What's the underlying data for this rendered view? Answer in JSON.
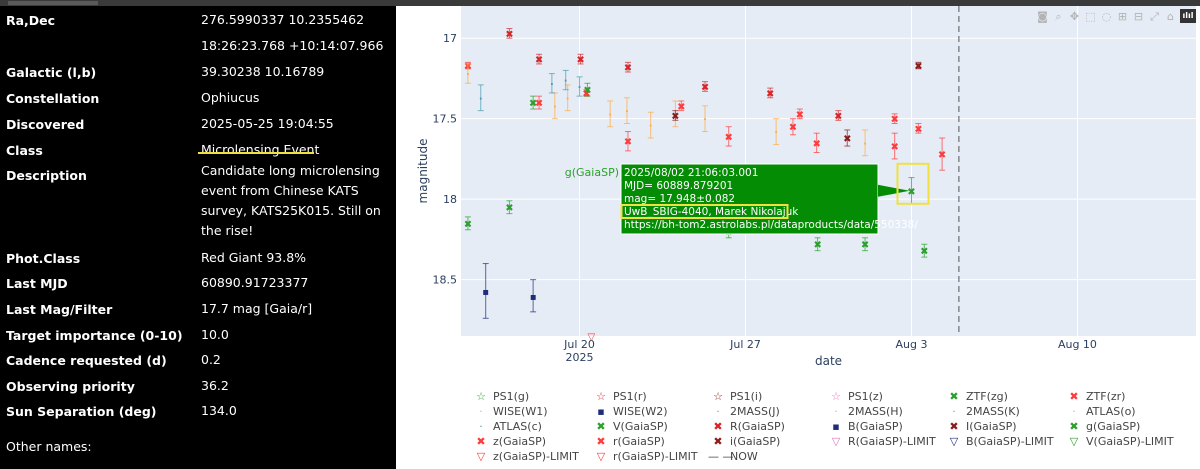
{
  "target": {
    "rows": [
      {
        "label": "Ra,Dec",
        "values": [
          "276.5990337 10.2355462",
          "18:26:23.768 +10:14:07.966"
        ]
      },
      {
        "label": "Galactic (l,b)",
        "values": [
          "39.30238 10.16789"
        ]
      },
      {
        "label": "Constellation",
        "values": [
          "Ophiucus"
        ]
      },
      {
        "label": "Discovered",
        "values": [
          "2025-05-25 19:04:55"
        ]
      },
      {
        "label": "Class",
        "values": [
          "Microlensing Event"
        ]
      },
      {
        "label": "Description",
        "values": [
          "Candidate long microlensing event from Chinese KATS survey, KATS25K015. Still on the rise!"
        ]
      },
      {
        "label": "Phot.Class",
        "values": [
          "Red Giant 93.8%"
        ]
      },
      {
        "label": "Last MJD",
        "values": [
          "60890.91723377"
        ]
      },
      {
        "label": "Last Mag/Filter",
        "values": [
          "17.7 mag [Gaia/r]"
        ]
      },
      {
        "label": "Target importance (0-10)",
        "values": [
          "10.0"
        ]
      },
      {
        "label": "Cadence requested (d)",
        "values": [
          "0.2"
        ]
      },
      {
        "label": "Observing priority",
        "values": [
          "36.2"
        ]
      },
      {
        "label": "Sun Separation (deg)",
        "values": [
          "134.0"
        ]
      }
    ],
    "other_names_label": "Other names:",
    "highlight_color": "#f0e140"
  },
  "modebar": {
    "icons": [
      "camera-icon",
      "zoom-icon",
      "pan-icon",
      "box-select-icon",
      "lasso-icon",
      "zoom-in-icon",
      "zoom-out-icon",
      "autoscale-icon",
      "home-icon",
      "plotly-logo-icon"
    ],
    "logo_text": "ılıl"
  },
  "chart_data": {
    "type": "scatter",
    "xlabel": "date",
    "ylabel": "magnitude",
    "ylim": [
      18.85,
      16.8
    ],
    "xlim": [
      "2025-07-15",
      "2025-08-15"
    ],
    "reversed_y": true,
    "grid": true,
    "legend_position": "bottom",
    "x_ticks": [
      {
        "date": "2025-07-20",
        "label": "Jul 20",
        "year_label": "2025"
      },
      {
        "date": "2025-07-27",
        "label": "Jul 27"
      },
      {
        "date": "2025-08-03",
        "label": "Aug 3"
      },
      {
        "date": "2025-08-10",
        "label": "Aug 10"
      }
    ],
    "y_ticks": [
      17,
      17.5,
      18,
      18.5
    ],
    "now_date": "2025-08-05",
    "series": [
      {
        "name": "PS1(g)",
        "symbol": "☆",
        "color": "#2ca02c",
        "points": []
      },
      {
        "name": "PS1(r)",
        "symbol": "☆",
        "color": "#d62728",
        "points": []
      },
      {
        "name": "PS1(i)",
        "symbol": "☆",
        "color": "#8c1c1c",
        "points": []
      },
      {
        "name": "PS1(z)",
        "symbol": "☆",
        "color": "#e377c2",
        "points": []
      },
      {
        "name": "ZTF(zg)",
        "symbol": "✖",
        "color": "#2ca02c",
        "points": [
          {
            "x": "2025-07-15T07:00",
            "y": 18.15,
            "err": 0.04
          },
          {
            "x": "2025-07-17T01:00",
            "y": 18.05,
            "err": 0.04
          },
          {
            "x": "2025-07-18T01:00",
            "y": 17.4,
            "err": 0.04
          },
          {
            "x": "2025-07-26T07:00",
            "y": 18.2,
            "err": 0.04
          },
          {
            "x": "2025-07-28T00:00",
            "y": 18.08,
            "err": 0.04
          },
          {
            "x": "2025-07-30T01:00",
            "y": 18.28,
            "err": 0.04
          },
          {
            "x": "2025-08-01T01:00",
            "y": 18.28,
            "err": 0.04
          },
          {
            "x": "2025-08-03T13:00",
            "y": 18.32,
            "err": 0.04
          }
        ]
      },
      {
        "name": "ZTF(zr)",
        "symbol": "✖",
        "color": "#ff3b3b",
        "points": [
          {
            "x": "2025-07-15T07:00",
            "y": 17.17,
            "err": 0.02
          },
          {
            "x": "2025-07-20T07:00",
            "y": 17.34,
            "err": 0.02
          },
          {
            "x": "2025-07-24T07:00",
            "y": 17.42,
            "err": 0.03
          },
          {
            "x": "2025-07-29T07:00",
            "y": 17.47,
            "err": 0.03
          },
          {
            "x": "2025-08-02T07:00",
            "y": 17.5,
            "err": 0.03
          },
          {
            "x": "2025-08-03T07:00",
            "y": 17.56,
            "err": 0.03
          }
        ]
      },
      {
        "name": "WISE(W1)",
        "symbol": "·",
        "color": "#ffaa44",
        "points": [
          {
            "x": "2025-07-15T07:00",
            "y": 17.22,
            "err": 0.06
          },
          {
            "x": "2025-07-18T23:00",
            "y": 17.42,
            "err": 0.08
          },
          {
            "x": "2025-07-19T12:00",
            "y": 17.37,
            "err": 0.08
          },
          {
            "x": "2025-07-21T07:00",
            "y": 17.47,
            "err": 0.08
          },
          {
            "x": "2025-07-22T00:00",
            "y": 17.45,
            "err": 0.08
          },
          {
            "x": "2025-07-23T00:00",
            "y": 17.54,
            "err": 0.08
          },
          {
            "x": "2025-07-24T01:00",
            "y": 17.47,
            "err": 0.08
          },
          {
            "x": "2025-07-25T07:00",
            "y": 17.5,
            "err": 0.08
          },
          {
            "x": "2025-07-28T07:00",
            "y": 17.58,
            "err": 0.08
          },
          {
            "x": "2025-08-01T01:00",
            "y": 17.65,
            "err": 0.08
          }
        ]
      },
      {
        "name": "WISE(W2)",
        "symbol": "▪",
        "color": "#1f2e7a",
        "points": [
          {
            "x": "2025-07-16T01:00",
            "y": 18.57,
            "err": 0.17
          },
          {
            "x": "2025-07-18T01:00",
            "y": 18.6,
            "err": 0.1
          }
        ]
      },
      {
        "name": "2MASS(J)",
        "symbol": "·",
        "color": "#999999",
        "points": []
      },
      {
        "name": "2MASS(H)",
        "symbol": "·",
        "color": "#ffaa44",
        "points": []
      },
      {
        "name": "2MASS(K)",
        "symbol": "·",
        "color": "#999999",
        "points": []
      },
      {
        "name": "ATLAS(o)",
        "symbol": "·",
        "color": "#ffaa44",
        "points": []
      },
      {
        "name": "ATLAS(c)",
        "symbol": "·",
        "color": "#4a9ab0",
        "points": [
          {
            "x": "2025-07-15T20:00",
            "y": 17.37,
            "err": 0.08
          },
          {
            "x": "2025-07-18T20:00",
            "y": 17.28,
            "err": 0.06
          },
          {
            "x": "2025-07-19T10:00",
            "y": 17.26,
            "err": 0.06
          },
          {
            "x": "2025-07-20T00:00",
            "y": 17.3,
            "err": 0.06
          }
        ]
      },
      {
        "name": "V(GaiaSP)",
        "symbol": "✖",
        "color": "#2ca02c",
        "points": [
          {
            "x": "2025-07-20T08:00",
            "y": 17.32,
            "err": 0.04
          }
        ]
      },
      {
        "name": "R(GaiaSP)",
        "symbol": "✖",
        "color": "#d62728",
        "points": [
          {
            "x": "2025-07-17T01:00",
            "y": 16.97,
            "err": 0.03
          },
          {
            "x": "2025-07-18T07:00",
            "y": 17.13,
            "err": 0.03
          },
          {
            "x": "2025-07-20T01:00",
            "y": 17.13,
            "err": 0.03
          },
          {
            "x": "2025-07-22T01:00",
            "y": 17.18,
            "err": 0.03
          },
          {
            "x": "2025-07-25T07:00",
            "y": 17.3,
            "err": 0.03
          },
          {
            "x": "2025-07-28T01:00",
            "y": 17.34,
            "err": 0.03
          },
          {
            "x": "2025-07-30T22:00",
            "y": 17.48,
            "err": 0.03
          }
        ]
      },
      {
        "name": "B(GaiaSP)",
        "symbol": "▪",
        "color": "#1f2e7a",
        "points": []
      },
      {
        "name": "I(GaiaSP)",
        "symbol": "✖",
        "color": "#8c1c1c",
        "points": [
          {
            "x": "2025-07-24T01:00",
            "y": 17.48,
            "err": 0.03
          },
          {
            "x": "2025-08-03T07:00",
            "y": 17.17,
            "err": 0.02
          }
        ]
      },
      {
        "name": "g(GaiaSP)",
        "symbol": "✖",
        "color": "#2ca02c",
        "points": [
          {
            "x": "2025-08-03T00:00",
            "y": 17.948,
            "err": 0.082
          }
        ]
      },
      {
        "name": "z(GaiaSP)",
        "symbol": "✖",
        "color": "#ff3b3b",
        "points": [
          {
            "x": "2025-07-29T00:00",
            "y": 17.55,
            "err": 0.05
          },
          {
            "x": "2025-08-02T07:00",
            "y": 17.67,
            "err": 0.08
          },
          {
            "x": "2025-08-04T07:00",
            "y": 17.72,
            "err": 0.1
          }
        ]
      },
      {
        "name": "r(GaiaSP)",
        "symbol": "✖",
        "color": "#ff3b3b",
        "points": [
          {
            "x": "2025-07-18T07:00",
            "y": 17.4,
            "err": 0.04
          },
          {
            "x": "2025-07-22T01:00",
            "y": 17.64,
            "err": 0.06
          },
          {
            "x": "2025-07-26T07:00",
            "y": 17.61,
            "err": 0.06
          },
          {
            "x": "2025-07-30T00:00",
            "y": 17.65,
            "err": 0.06
          }
        ]
      },
      {
        "name": "i(GaiaSP)",
        "symbol": "✖",
        "color": "#8c1c1c",
        "points": [
          {
            "x": "2025-07-31T07:00",
            "y": 17.62,
            "err": 0.05
          }
        ]
      },
      {
        "name": "R(GaiaSP)-LIMIT",
        "symbol": "▽",
        "color": "#e377c2",
        "points": []
      },
      {
        "name": "B(GaiaSP)-LIMIT",
        "symbol": "▽",
        "color": "#1f2e7a",
        "points": []
      },
      {
        "name": "V(GaiaSP)-LIMIT",
        "symbol": "▽",
        "color": "#2ca02c",
        "points": []
      },
      {
        "name": "z(GaiaSP)-LIMIT",
        "symbol": "▽",
        "color": "#ff3b3b",
        "points": []
      },
      {
        "name": "r(GaiaSP)-LIMIT",
        "symbol": "▽",
        "color": "#ff3b3b",
        "points": [
          {
            "x": "2025-07-20T12:00",
            "y": 18.85
          }
        ]
      },
      {
        "name": "NOW",
        "symbol": "— —",
        "color": "#444444",
        "points": []
      }
    ],
    "tooltip": {
      "series_label": "g(GaiaSP)",
      "lines": [
        "2025/08/02 21:06:03.001",
        "MJD= 60889.879201",
        "mag= 17.948±0.082",
        "UwB_SBIG-4040, Marek Nikolajuk",
        "https://bh-tom2.astrolabs.pl/dataproducts/data/550338/"
      ],
      "highlighted_line": 3,
      "bg_color": "#048c04"
    }
  }
}
